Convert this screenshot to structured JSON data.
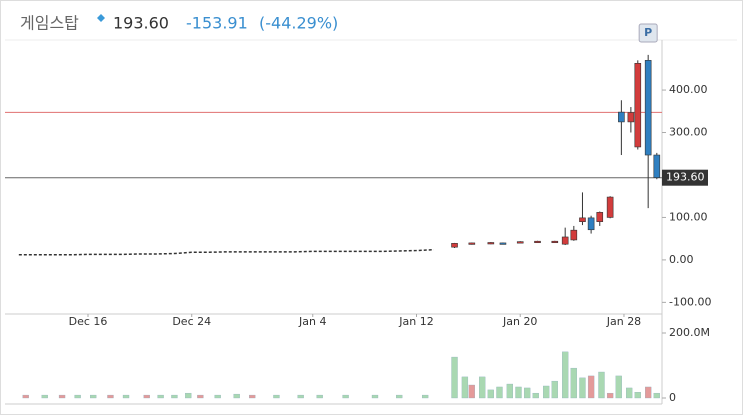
{
  "chart_data": {
    "type": "candlestick",
    "title": "게임스탑",
    "price": "193.60",
    "change": "-153.91",
    "change_pct": "(-44.29%)",
    "xlim": [
      -0.8,
      37.2
    ],
    "xticks": [
      {
        "value": 4,
        "label": "Dec 16"
      },
      {
        "value": 10,
        "label": "Dec 24"
      },
      {
        "value": 17,
        "label": "Jan 4"
      },
      {
        "value": 23,
        "label": "Jan 12"
      },
      {
        "value": 29,
        "label": "Jan 20"
      },
      {
        "value": 35,
        "label": "Jan 28"
      }
    ],
    "ylim": [
      -118,
      565
    ],
    "yticks": [
      {
        "value": -100,
        "label": "-100.00"
      },
      {
        "value": 0,
        "label": "0.00"
      },
      {
        "value": 100,
        "label": "100.00"
      },
      {
        "value": 300,
        "label": "300.00"
      },
      {
        "value": 400,
        "label": "400.00"
      }
    ],
    "last_price": {
      "value": 193.6,
      "label": "193.60"
    },
    "prev_close": 347.51,
    "prev_close_color": "#e07070",
    "last_price_color": "#666666",
    "up_color": "#d23c3c",
    "down_color": "#2f7fc0",
    "line": {
      "color": "#333333",
      "x": [
        0,
        1,
        2,
        3,
        4,
        5,
        6,
        7,
        8,
        9,
        10,
        11,
        12,
        13,
        14,
        15,
        16,
        17,
        18,
        19,
        20,
        21,
        22,
        23,
        24
      ],
      "values": [
        12,
        12,
        12,
        12,
        13,
        13,
        13,
        14,
        14,
        15,
        18,
        18,
        19,
        19,
        19,
        19,
        19,
        20,
        20,
        20,
        20,
        20,
        21,
        22,
        24
      ]
    },
    "candles": {
      "x": [
        25.2,
        26.2,
        27.3,
        28.0,
        29.0,
        30.0,
        31.0,
        31.6,
        32.1,
        32.6,
        33.1,
        33.6,
        34.2,
        34.85,
        35.4,
        35.8,
        36.4,
        36.9
      ],
      "open": [
        30,
        38,
        39,
        40,
        41,
        42,
        43,
        37,
        47,
        90,
        99,
        90,
        100,
        348,
        325,
        266,
        470,
        247
      ],
      "high": [
        40,
        41,
        42,
        41,
        44,
        45,
        45,
        76,
        80,
        159,
        104,
        114,
        150,
        376,
        360,
        470,
        483,
        252
      ],
      "low": [
        28,
        36,
        37,
        37,
        40,
        41,
        42,
        35,
        45,
        82,
        62,
        80,
        98,
        247,
        300,
        260,
        122,
        190
      ],
      "close": [
        39,
        40,
        41,
        38,
        43,
        44,
        44,
        54,
        70,
        99,
        71,
        112,
        148,
        325,
        347,
        463,
        247,
        193.6
      ]
    },
    "annotations": [
      {
        "x": 36.4,
        "label": "P"
      }
    ],
    "volume_ylim": [
      0,
      220
    ],
    "volume_yticks": [
      {
        "value": 0,
        "label": "0"
      },
      {
        "value": 200,
        "label": "200.0M"
      }
    ],
    "volume_up": {
      "color": "#a9d8b2",
      "x": [
        1.5,
        3.4,
        4.3,
        6.2,
        8.2,
        9,
        9.8,
        11.5,
        12.6,
        14.9,
        16.3,
        17.4,
        18.9,
        20.6,
        22,
        23.5,
        25.2,
        25.8,
        26.8,
        27.3,
        27.8,
        28.4,
        28.9,
        29.4,
        29.9,
        30.5,
        31,
        31.6,
        32.1,
        32.6,
        33.7,
        34.7,
        35.3,
        35.8,
        36.9
      ],
      "values": [
        9,
        9,
        9,
        9,
        9,
        9,
        15,
        9,
        12,
        9,
        9,
        9,
        9,
        9,
        9,
        9,
        126,
        65,
        65,
        25,
        34,
        43,
        34,
        31,
        15,
        37,
        52,
        142,
        92,
        62,
        80,
        68,
        31,
        18,
        15
      ]
    },
    "volume_down": {
      "color": "#e49a9a",
      "x": [
        0.4,
        2.5,
        5.3,
        7.4,
        10.5,
        13.5,
        26.2,
        33.1,
        34.2,
        36.4
      ],
      "values": [
        9,
        9,
        9,
        9,
        9,
        9,
        40,
        68,
        15,
        34
      ]
    }
  }
}
